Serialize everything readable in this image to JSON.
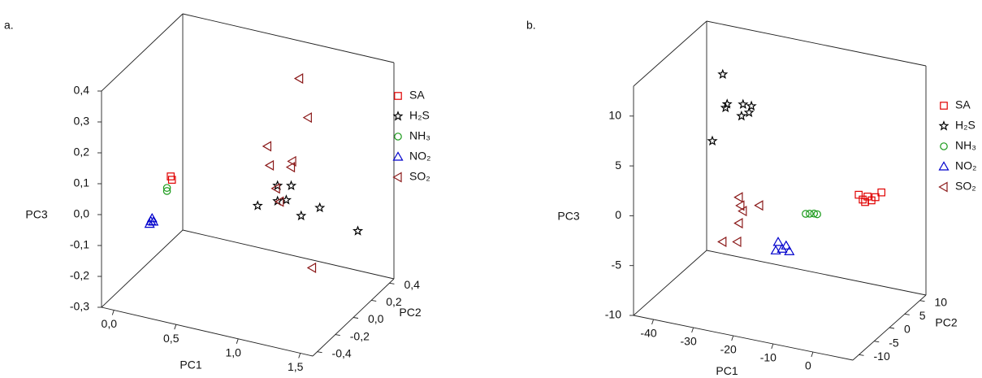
{
  "chart_data": [
    {
      "type": "scatter3d",
      "title": "a.",
      "xlabel": "PC1",
      "ylabel": "PC2",
      "zlabel": "PC3",
      "legend": "right",
      "xlim": [
        -0.1,
        1.6
      ],
      "ylim": [
        -0.45,
        0.45
      ],
      "zlim": [
        -0.3,
        0.4
      ],
      "xticks": [
        {
          "value": 0,
          "label": "0,0"
        },
        {
          "value": 0.5,
          "label": "0,5"
        },
        {
          "value": 1,
          "label": "1,0"
        },
        {
          "value": 1.5,
          "label": "1,5"
        }
      ],
      "yticks": [
        {
          "value": -0.4,
          "label": "-0,4"
        },
        {
          "value": -0.2,
          "label": "-0,2"
        },
        {
          "value": 0,
          "label": "0,0"
        },
        {
          "value": 0.2,
          "label": "0,2"
        },
        {
          "value": 0.4,
          "label": "0,4"
        }
      ],
      "zticks": [
        {
          "value": -0.3,
          "label": "-0,3"
        },
        {
          "value": -0.2,
          "label": "-0,2"
        },
        {
          "value": -0.1,
          "label": "-0,1"
        },
        {
          "value": 0,
          "label": "0,0"
        },
        {
          "value": 0.1,
          "label": "0,1"
        },
        {
          "value": 0.2,
          "label": "0,2"
        },
        {
          "value": 0.3,
          "label": "0,3"
        },
        {
          "value": 0.4,
          "label": "0,4"
        }
      ],
      "series": [
        {
          "name": "SA",
          "color": "#e00000",
          "marker": "square",
          "x": [
            0.13,
            0.14
          ],
          "y": [
            0,
            0
          ],
          "z": [
            0.02,
            0.01
          ]
        },
        {
          "name": "H₂S",
          "color": "#000000",
          "marker": "star",
          "x": [
            0.83,
            0.99,
            1.1,
            1.06,
            1.18,
            1.33,
            1.44,
            0.99
          ],
          "y": [
            0,
            0,
            0,
            0,
            0,
            0,
            0.27,
            0
          ],
          "z": [
            -0.01,
            0.02,
            0.08,
            0.03,
            -0.01,
            0.03,
            -0.11,
            0.07
          ]
        },
        {
          "name": "NH₃",
          "color": "#1a9a1a",
          "marker": "circle",
          "x": [
            0.1,
            0.1
          ],
          "y": [
            0,
            0
          ],
          "z": [
            -0.03,
            -0.02
          ]
        },
        {
          "name": "NO₂",
          "color": "#0000cc",
          "marker": "triangle-up",
          "x": [
            -0.03,
            -0.02,
            -0.01,
            -0.04
          ],
          "y": [
            0,
            0,
            0,
            0
          ],
          "z": [
            -0.14,
            -0.13,
            -0.14,
            -0.15
          ]
        },
        {
          "name": "SO₂",
          "color": "#8b1a1a",
          "marker": "triangle-left",
          "x": [
            0.97,
            1.04,
            0.91,
            1.11,
            0.93,
            1.1,
            0.98,
            1.01,
            1.27
          ],
          "y": [
            0.27,
            0.27,
            0,
            0,
            0,
            0,
            0,
            0,
            0
          ],
          "z": [
            0.34,
            0.22,
            0.19,
            0.16,
            0.13,
            0.14,
            0.06,
            0.02,
            -0.17
          ]
        }
      ]
    },
    {
      "type": "scatter3d",
      "title": "b.",
      "xlabel": "PC1",
      "ylabel": "PC2",
      "zlabel": "PC3",
      "legend": "right",
      "xlim": [
        -45,
        10
      ],
      "ylim": [
        -12,
        12
      ],
      "zlim": [
        -10,
        13
      ],
      "xticks": [
        -40,
        -30,
        -20,
        -10,
        0
      ],
      "yticks": [
        -10,
        -5,
        0,
        5,
        10
      ],
      "zticks": [
        -10,
        -5,
        0,
        5,
        10
      ],
      "series": [
        {
          "name": "SA",
          "color": "#e00000",
          "marker": "square",
          "x": [
            2.3,
            3.3,
            4.5,
            5.5,
            6.5,
            8.0,
            3.9
          ],
          "y": [
            0,
            0,
            0,
            0,
            0,
            0,
            0
          ],
          "z": [
            2.7,
            2.3,
            2.7,
            2.4,
            2.8,
            3.4,
            2.1
          ]
        },
        {
          "name": "H₂S",
          "color": "#000000",
          "marker": "star",
          "x": [
            -31.8,
            -30.7,
            -31.1,
            -26.7,
            -24.6,
            -27.1,
            -25.2,
            -34.4
          ],
          "y": [
            0,
            0,
            0,
            0,
            0,
            0,
            0,
            0
          ],
          "z": [
            12.0,
            9.1,
            8.7,
            9.4,
            9.4,
            8.2,
            8.7,
            5.1
          ]
        },
        {
          "name": "NH₃",
          "color": "#1a9a1a",
          "marker": "circle",
          "x": [
            -11.0,
            -10.0,
            -8.9,
            -8.1
          ],
          "y": [
            0,
            0,
            0,
            0
          ],
          "z": [
            -0.3,
            -0.2,
            -0.1,
            -0.1
          ]
        },
        {
          "name": "NO₂",
          "color": "#0000cc",
          "marker": "triangle-up",
          "x": [
            -17.9,
            -16.9,
            -15.9,
            -15.1,
            -18.5
          ],
          "y": [
            0,
            0,
            0,
            0,
            0
          ],
          "z": [
            -3.7,
            -4.3,
            -3.9,
            -4.4,
            -4.6
          ]
        },
        {
          "name": "SO₂",
          "color": "#8b1a1a",
          "marker": "triangle-left",
          "x": [
            -27.7,
            -27.3,
            -22.6,
            -26.7,
            -27.7,
            -31.8,
            -28.1
          ],
          "y": [
            0,
            0,
            0,
            0,
            0,
            0,
            0
          ],
          "z": [
            0.0,
            -0.8,
            -0.4,
            -1.3,
            -2.6,
            -4.8,
            -4.5
          ]
        }
      ]
    }
  ]
}
